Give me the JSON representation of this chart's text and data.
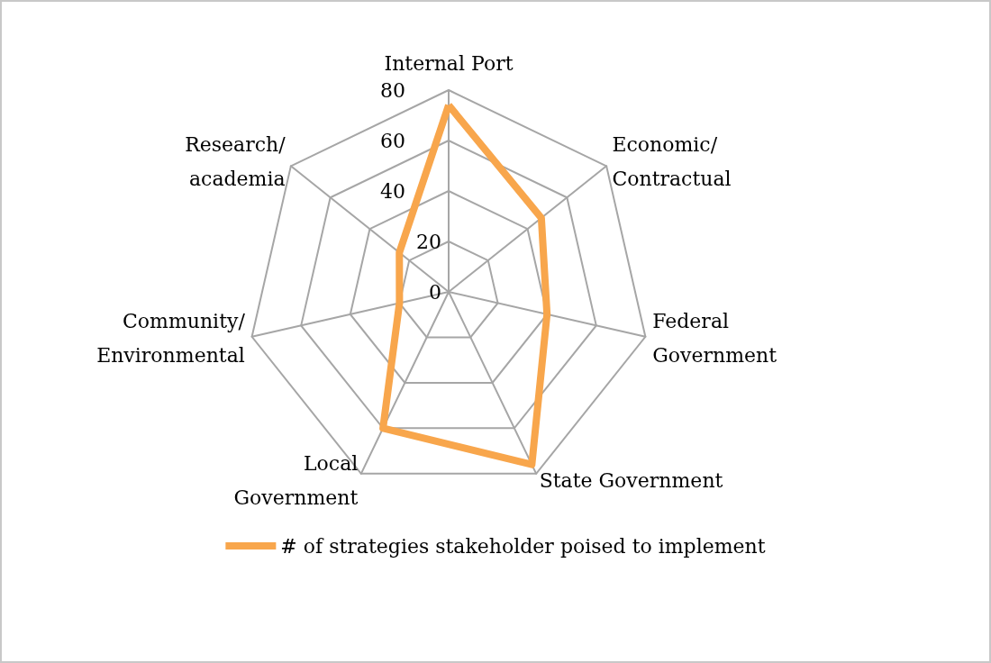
{
  "chart_data": {
    "type": "radar",
    "categories": [
      "Internal Port",
      "Economic/\nContractual",
      "Federal\nGovernment",
      "State Government",
      "Local\nGovernment",
      "Community/\nEnvironmental",
      "Research/\nacademia"
    ],
    "series": [
      {
        "name": "# of strategies stakeholder poised to implement",
        "color": "#f8a64c",
        "values": [
          74,
          47,
          40,
          76,
          60,
          20,
          25
        ]
      }
    ],
    "ylim": [
      0,
      80
    ],
    "yticks": [
      0,
      20,
      40,
      60,
      80
    ],
    "grid": true,
    "legend": "bottom",
    "marker": "none"
  }
}
